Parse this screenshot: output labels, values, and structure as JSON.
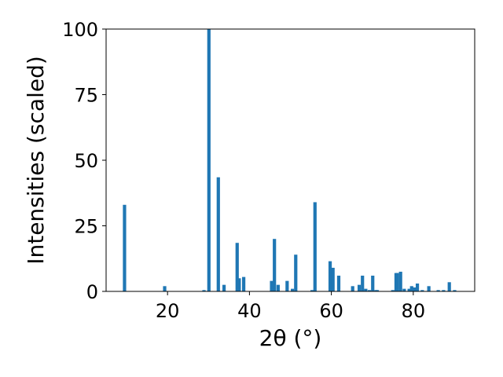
{
  "chart_data": {
    "type": "bar",
    "title": "",
    "xlabel": "2θ (°)",
    "ylabel": "Intensities (scaled)",
    "xlim": [
      5.0,
      95.0
    ],
    "ylim": [
      0,
      100
    ],
    "xticks": [
      20,
      40,
      60,
      80
    ],
    "yticks": [
      0,
      25,
      50,
      75,
      100
    ],
    "bar_color": "#1f77b4",
    "grid": false,
    "legend": "none",
    "x": [
      9.5,
      19.3,
      28.9,
      30.1,
      32.4,
      33.8,
      37.0,
      37.5,
      38.6,
      45.4,
      46.1,
      47.0,
      49.2,
      50.5,
      51.3,
      55.3,
      56.0,
      59.7,
      60.4,
      61.8,
      65.2,
      66.8,
      67.6,
      68.4,
      69.3,
      70.1,
      70.9,
      71.2,
      75.0,
      75.8,
      76.1,
      76.9,
      77.8,
      79.0,
      79.6,
      80.3,
      81.0,
      82.2,
      83.8,
      86.1,
      87.4,
      88.8,
      90.1
    ],
    "values": [
      33,
      2,
      0.5,
      100,
      43.5,
      2.5,
      18.5,
      5,
      5.5,
      4,
      20,
      2.5,
      4,
      1,
      14,
      0.5,
      34,
      11.5,
      9,
      6,
      2,
      2.5,
      6,
      1,
      0.5,
      6,
      0.5,
      0.5,
      0.5,
      7,
      7,
      7.5,
      1,
      1,
      2,
      1.5,
      3,
      0.5,
      2,
      0.5,
      0.5,
      3.5,
      0.5
    ]
  }
}
